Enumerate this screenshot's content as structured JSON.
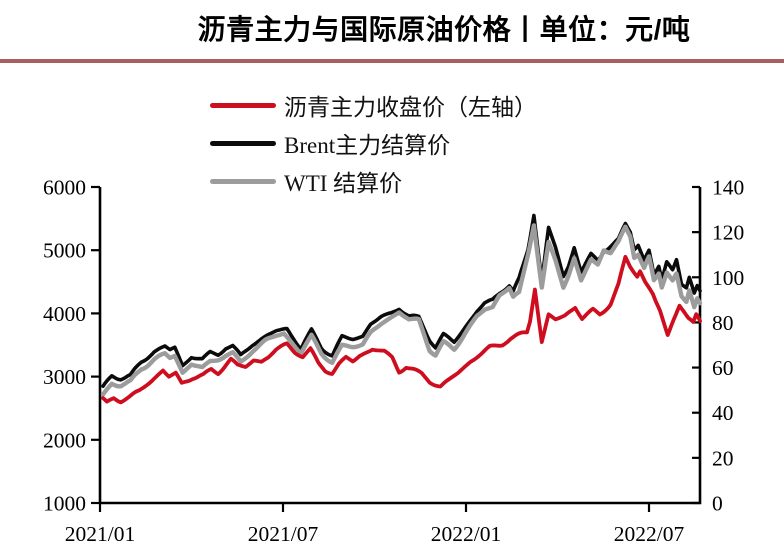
{
  "header": {
    "title": "沥青主力与国际原油价格丨单位：元/吨",
    "rule_color": "#A85F5F"
  },
  "chart_data": {
    "type": "line",
    "title": "沥青主力与国际原油价格",
    "unit": "元/吨",
    "grid": false,
    "legend_position": "top-left",
    "x_axis": {
      "tick_labels": [
        "2021/01",
        "2021/07",
        "2022/01",
        "2022/07"
      ],
      "tick_months": [
        0,
        6,
        12,
        18
      ],
      "start": "2021-01-04",
      "end": "2022-08-22"
    },
    "left_axis": {
      "min": 1000,
      "max": 6000,
      "ticks": [
        6000,
        5000,
        4000,
        3000,
        2000,
        1000
      ],
      "applies_to": "沥青主力收盘价"
    },
    "right_axis": {
      "min": 0,
      "max": 140,
      "ticks": [
        140,
        120,
        100,
        80,
        60,
        40,
        20,
        0
      ],
      "applies_to": "Brent与WTI结算价"
    },
    "series": [
      {
        "name": "沥青主力收盘价（左轴）",
        "axis": "left",
        "color": "#CE0E1E",
        "points": [
          [
            "2021-01-04",
            2640
          ],
          [
            "2021-01-08",
            2575
          ],
          [
            "2021-01-15",
            2660
          ],
          [
            "2021-01-22",
            2620
          ],
          [
            "2021-02-01",
            2690
          ],
          [
            "2021-02-10",
            2770
          ],
          [
            "2021-02-22",
            2930
          ],
          [
            "2021-03-03",
            3100
          ],
          [
            "2021-03-09",
            3000
          ],
          [
            "2021-03-16",
            3050
          ],
          [
            "2021-03-22",
            2890
          ],
          [
            "2021-04-02",
            2985
          ],
          [
            "2021-04-13",
            3015
          ],
          [
            "2021-04-21",
            3105
          ],
          [
            "2021-04-28",
            3060
          ],
          [
            "2021-05-10",
            3270
          ],
          [
            "2021-05-17",
            3175
          ],
          [
            "2021-05-25",
            3155
          ],
          [
            "2021-06-02",
            3260
          ],
          [
            "2021-06-10",
            3240
          ],
          [
            "2021-06-17",
            3310
          ],
          [
            "2021-06-25",
            3420
          ],
          [
            "2021-07-05",
            3520
          ],
          [
            "2021-07-13",
            3400
          ],
          [
            "2021-07-21",
            3320
          ],
          [
            "2021-07-29",
            3425
          ],
          [
            "2021-08-06",
            3200
          ],
          [
            "2021-08-13",
            3100
          ],
          [
            "2021-08-20",
            3060
          ],
          [
            "2021-08-27",
            3200
          ],
          [
            "2021-09-03",
            3300
          ],
          [
            "2021-09-10",
            3240
          ],
          [
            "2021-09-17",
            3330
          ],
          [
            "2021-09-30",
            3435
          ],
          [
            "2021-10-11",
            3390
          ],
          [
            "2021-10-19",
            3300
          ],
          [
            "2021-10-26",
            3085
          ],
          [
            "2021-11-02",
            3155
          ],
          [
            "2021-11-10",
            3100
          ],
          [
            "2021-11-18",
            3035
          ],
          [
            "2021-11-26",
            2920
          ],
          [
            "2021-12-06",
            2845
          ],
          [
            "2021-12-15",
            2950
          ],
          [
            "2021-12-24",
            3060
          ],
          [
            "2022-01-05",
            3230
          ],
          [
            "2022-01-14",
            3335
          ],
          [
            "2022-01-25",
            3460
          ],
          [
            "2022-02-07",
            3520
          ],
          [
            "2022-02-15",
            3600
          ],
          [
            "2022-02-23",
            3650
          ],
          [
            "2022-03-01",
            3700
          ],
          [
            "2022-03-04",
            3880
          ],
          [
            "2022-03-09",
            4400
          ],
          [
            "2022-03-16",
            3550
          ],
          [
            "2022-03-23",
            3975
          ],
          [
            "2022-03-30",
            3900
          ],
          [
            "2022-04-08",
            3960
          ],
          [
            "2022-04-19",
            4100
          ],
          [
            "2022-04-26",
            3920
          ],
          [
            "2022-05-06",
            4050
          ],
          [
            "2022-05-13",
            3990
          ],
          [
            "2022-05-24",
            4150
          ],
          [
            "2022-06-01",
            4450
          ],
          [
            "2022-06-08",
            4880
          ],
          [
            "2022-06-13",
            4740
          ],
          [
            "2022-06-20",
            4600
          ],
          [
            "2022-06-23",
            4680
          ],
          [
            "2022-06-28",
            4500
          ],
          [
            "2022-07-05",
            4300
          ],
          [
            "2022-07-08",
            4180
          ],
          [
            "2022-07-12",
            4050
          ],
          [
            "2022-07-15",
            3900
          ],
          [
            "2022-07-20",
            3650
          ],
          [
            "2022-07-26",
            3900
          ],
          [
            "2022-08-01",
            4140
          ],
          [
            "2022-08-05",
            4050
          ],
          [
            "2022-08-10",
            3920
          ],
          [
            "2022-08-15",
            3840
          ],
          [
            "2022-08-18",
            3960
          ],
          [
            "2022-08-22",
            3880
          ]
        ]
      },
      {
        "name": "Brent主力结算价",
        "axis": "right",
        "color": "#0B0B0B",
        "points": [
          [
            "2021-01-04",
            51.1
          ],
          [
            "2021-01-13",
            56.3
          ],
          [
            "2021-01-22",
            55.4
          ],
          [
            "2021-02-01",
            56.4
          ],
          [
            "2021-02-12",
            62.4
          ],
          [
            "2021-02-25",
            67.0
          ],
          [
            "2021-03-05",
            69.4
          ],
          [
            "2021-03-10",
            67.9
          ],
          [
            "2021-03-15",
            68.9
          ],
          [
            "2021-03-23",
            60.8
          ],
          [
            "2021-04-01",
            64.9
          ],
          [
            "2021-04-12",
            63.3
          ],
          [
            "2021-04-20",
            66.6
          ],
          [
            "2021-04-28",
            66.1
          ],
          [
            "2021-05-05",
            69.0
          ],
          [
            "2021-05-12",
            69.3
          ],
          [
            "2021-05-20",
            65.1
          ],
          [
            "2021-06-01",
            70.3
          ],
          [
            "2021-06-15",
            74.0
          ],
          [
            "2021-06-25",
            76.2
          ],
          [
            "2021-07-05",
            77.2
          ],
          [
            "2021-07-19",
            68.6
          ],
          [
            "2021-07-30",
            76.3
          ],
          [
            "2021-08-09",
            69.0
          ],
          [
            "2021-08-20",
            65.2
          ],
          [
            "2021-08-30",
            73.4
          ],
          [
            "2021-09-10",
            72.9
          ],
          [
            "2021-09-20",
            73.9
          ],
          [
            "2021-09-28",
            79.1
          ],
          [
            "2021-10-08",
            82.4
          ],
          [
            "2021-10-18",
            84.3
          ],
          [
            "2021-10-26",
            86.4
          ],
          [
            "2021-11-05",
            82.7
          ],
          [
            "2021-11-15",
            82.0
          ],
          [
            "2021-11-26",
            72.7
          ],
          [
            "2021-12-01",
            68.9
          ],
          [
            "2021-12-09",
            74.4
          ],
          [
            "2021-12-20",
            71.5
          ],
          [
            "2021-12-31",
            77.8
          ],
          [
            "2022-01-12",
            84.7
          ],
          [
            "2022-01-20",
            88.4
          ],
          [
            "2022-01-28",
            90.0
          ],
          [
            "2022-02-04",
            93.3
          ],
          [
            "2022-02-14",
            96.5
          ],
          [
            "2022-02-18",
            93.5
          ],
          [
            "2022-02-24",
            99.1
          ],
          [
            "2022-03-02",
            112.9
          ],
          [
            "2022-03-08",
            128.0
          ],
          [
            "2022-03-16",
            98.0
          ],
          [
            "2022-03-23",
            121.6
          ],
          [
            "2022-03-30",
            113.5
          ],
          [
            "2022-04-07",
            100.6
          ],
          [
            "2022-04-12",
            104.6
          ],
          [
            "2022-04-18",
            113.2
          ],
          [
            "2022-04-25",
            102.3
          ],
          [
            "2022-05-04",
            110.1
          ],
          [
            "2022-05-11",
            107.5
          ],
          [
            "2022-05-17",
            111.9
          ],
          [
            "2022-05-24",
            113.6
          ],
          [
            "2022-06-01",
            116.3
          ],
          [
            "2022-06-08",
            123.6
          ],
          [
            "2022-06-13",
            120.5
          ],
          [
            "2022-06-17",
            113.0
          ],
          [
            "2022-06-21",
            114.5
          ],
          [
            "2022-06-27",
            107.0
          ],
          [
            "2022-07-01",
            111.5
          ],
          [
            "2022-07-06",
            101.0
          ],
          [
            "2022-07-11",
            105.0
          ],
          [
            "2022-07-14",
            99.0
          ],
          [
            "2022-07-19",
            107.0
          ],
          [
            "2022-07-25",
            103.5
          ],
          [
            "2022-07-29",
            108.0
          ],
          [
            "2022-08-03",
            97.0
          ],
          [
            "2022-08-08",
            95.0
          ],
          [
            "2022-08-11",
            99.5
          ],
          [
            "2022-08-16",
            92.5
          ],
          [
            "2022-08-19",
            96.0
          ],
          [
            "2022-08-22",
            94.0
          ]
        ]
      },
      {
        "name": "WTI 结算价",
        "axis": "right",
        "color": "#9C9C9C",
        "points": [
          [
            "2021-01-04",
            47.6
          ],
          [
            "2021-01-13",
            53.0
          ],
          [
            "2021-01-22",
            52.3
          ],
          [
            "2021-02-01",
            53.6
          ],
          [
            "2021-02-12",
            59.5
          ],
          [
            "2021-02-25",
            63.5
          ],
          [
            "2021-03-05",
            66.1
          ],
          [
            "2021-03-10",
            64.4
          ],
          [
            "2021-03-15",
            65.4
          ],
          [
            "2021-03-23",
            57.8
          ],
          [
            "2021-04-01",
            61.5
          ],
          [
            "2021-04-12",
            59.7
          ],
          [
            "2021-04-20",
            62.7
          ],
          [
            "2021-04-28",
            63.9
          ],
          [
            "2021-05-05",
            65.6
          ],
          [
            "2021-05-12",
            66.1
          ],
          [
            "2021-05-20",
            62.0
          ],
          [
            "2021-06-01",
            67.7
          ],
          [
            "2021-06-15",
            72.1
          ],
          [
            "2021-06-25",
            74.1
          ],
          [
            "2021-07-02",
            75.2
          ],
          [
            "2021-07-19",
            66.4
          ],
          [
            "2021-07-30",
            73.9
          ],
          [
            "2021-08-09",
            66.5
          ],
          [
            "2021-08-20",
            62.3
          ],
          [
            "2021-08-30",
            69.2
          ],
          [
            "2021-09-10",
            69.7
          ],
          [
            "2021-09-20",
            70.3
          ],
          [
            "2021-09-28",
            75.3
          ],
          [
            "2021-10-08",
            79.4
          ],
          [
            "2021-10-18",
            82.3
          ],
          [
            "2021-10-26",
            84.7
          ],
          [
            "2021-11-05",
            81.3
          ],
          [
            "2021-11-15",
            80.9
          ],
          [
            "2021-11-26",
            68.2
          ],
          [
            "2021-12-01",
            65.6
          ],
          [
            "2021-12-09",
            70.9
          ],
          [
            "2021-12-20",
            68.2
          ],
          [
            "2021-12-31",
            75.2
          ],
          [
            "2022-01-12",
            82.6
          ],
          [
            "2022-01-20",
            85.6
          ],
          [
            "2022-01-28",
            86.8
          ],
          [
            "2022-02-04",
            92.3
          ],
          [
            "2022-02-14",
            95.5
          ],
          [
            "2022-02-18",
            91.1
          ],
          [
            "2022-02-24",
            92.8
          ],
          [
            "2022-03-02",
            110.6
          ],
          [
            "2022-03-08",
            123.7
          ],
          [
            "2022-03-16",
            95.0
          ],
          [
            "2022-03-23",
            114.9
          ],
          [
            "2022-03-30",
            107.8
          ],
          [
            "2022-04-07",
            96.0
          ],
          [
            "2022-04-12",
            100.6
          ],
          [
            "2022-04-18",
            108.2
          ],
          [
            "2022-04-25",
            98.5
          ],
          [
            "2022-05-04",
            107.8
          ],
          [
            "2022-05-11",
            105.7
          ],
          [
            "2022-05-17",
            112.4
          ],
          [
            "2022-05-24",
            110.8
          ],
          [
            "2022-06-01",
            115.3
          ],
          [
            "2022-06-08",
            122.1
          ],
          [
            "2022-06-13",
            118.5
          ],
          [
            "2022-06-17",
            109.5
          ],
          [
            "2022-06-21",
            110.5
          ],
          [
            "2022-06-27",
            103.5
          ],
          [
            "2022-07-01",
            108.5
          ],
          [
            "2022-07-06",
            98.5
          ],
          [
            "2022-07-11",
            102.0
          ],
          [
            "2022-07-14",
            96.0
          ],
          [
            "2022-07-19",
            102.5
          ],
          [
            "2022-07-25",
            98.5
          ],
          [
            "2022-07-29",
            101.5
          ],
          [
            "2022-08-03",
            91.5
          ],
          [
            "2022-08-08",
            89.0
          ],
          [
            "2022-08-11",
            94.0
          ],
          [
            "2022-08-16",
            86.5
          ],
          [
            "2022-08-19",
            90.5
          ],
          [
            "2022-08-22",
            88.5
          ]
        ]
      }
    ]
  }
}
